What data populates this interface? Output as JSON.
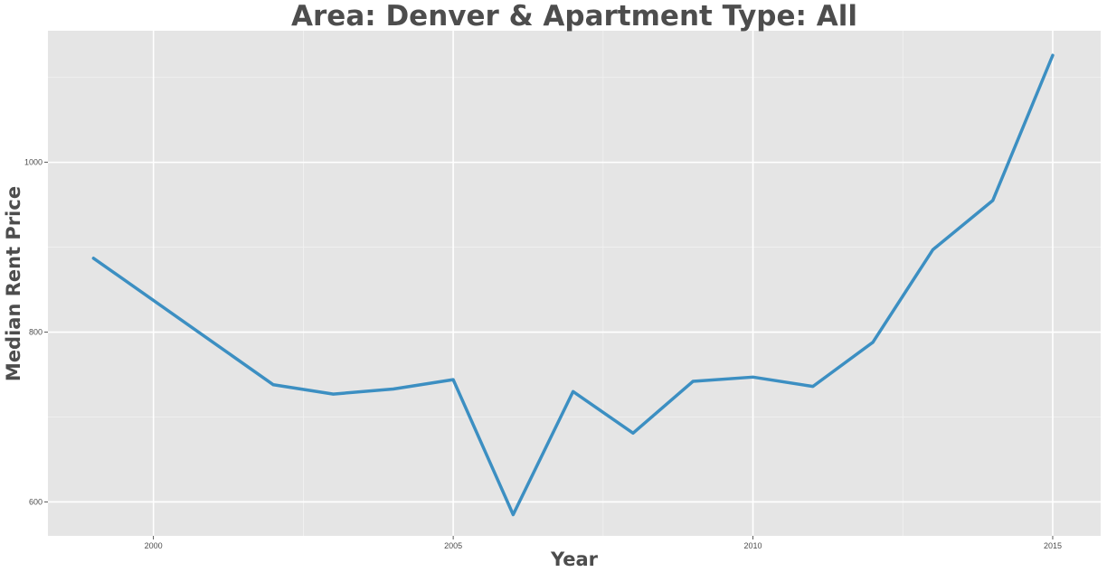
{
  "chart_data": {
    "type": "line",
    "title": "Area: Denver & Apartment Type: All",
    "xlabel": "Year",
    "ylabel": "Median Rent Price",
    "x": [
      1999,
      2002,
      2003,
      2004,
      2005,
      2006,
      2007,
      2008,
      2009,
      2010,
      2011,
      2012,
      2013,
      2014,
      2015
    ],
    "series": [
      {
        "values": [
          887,
          738,
          727,
          733,
          744,
          585,
          730,
          681,
          742,
          747,
          736,
          788,
          897,
          955,
          1126
        ]
      }
    ],
    "xticks": [
      2000,
      2005,
      2010,
      2015
    ],
    "xtick_labels": [
      "2000",
      "2005",
      "2010",
      "2015"
    ],
    "yticks": [
      600,
      800,
      1000
    ],
    "ytick_labels": [
      "600",
      "800",
      "1000"
    ],
    "xlim": [
      1998.24,
      2015.8
    ],
    "ylim": [
      560,
      1155
    ],
    "grid": true,
    "legend": "none",
    "colors": {
      "line": "#3c8fc2",
      "panel_background": "#e5e5e5",
      "grid_major": "#ffffff",
      "text": "#4d4d4d"
    }
  }
}
